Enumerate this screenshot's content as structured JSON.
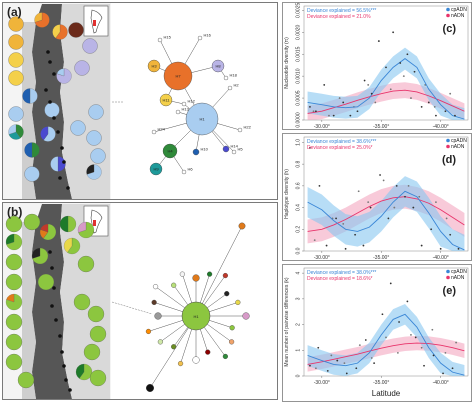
{
  "figure": {
    "panels": {
      "a": "(a)",
      "b": "(b)",
      "c": "(c)",
      "d": "(d)",
      "e": "(e)"
    }
  },
  "colors": {
    "cp": "#3a86d6",
    "n": "#e8346b",
    "cp_band": "#87c6f0",
    "n_band": "#f4a6bf"
  },
  "network_a": {
    "haplotypes": [
      {
        "id": "H7",
        "label": "H7",
        "color": "#e8712a"
      },
      {
        "id": "H1",
        "label": "H1",
        "color": "#a9cdf0"
      },
      {
        "id": "H3",
        "label": "H3",
        "color": "#f0b43a"
      },
      {
        "id": "H8",
        "label": "H8",
        "color": "#b9b4e6"
      },
      {
        "id": "H11",
        "label": "H11",
        "color": "#f4d04a"
      },
      {
        "id": "H4",
        "label": "H4",
        "color": "#2f8a3a"
      },
      {
        "id": "H9",
        "label": "H9",
        "color": "#1e9a9a"
      },
      {
        "id": "H10",
        "label": "H10",
        "color": "#1f5fb0"
      },
      {
        "id": "H14",
        "label": "H14",
        "color": "#4a4ad0"
      },
      {
        "id": "H13",
        "label": "H13",
        "color": "#ffffff"
      },
      {
        "id": "H12",
        "label": "H12",
        "color": "#ffffff"
      },
      {
        "id": "H2",
        "label": "H2",
        "color": "#ffffff"
      },
      {
        "id": "H5",
        "label": "H5",
        "color": "#ffffff"
      },
      {
        "id": "H6",
        "label": "H6",
        "color": "#ffffff"
      },
      {
        "id": "H15",
        "label": "H15",
        "color": "#ffffff"
      },
      {
        "id": "H16",
        "label": "H16",
        "color": "#ffffff"
      },
      {
        "id": "H18",
        "label": "H18",
        "color": "#ffffff"
      },
      {
        "id": "H22",
        "label": "H22",
        "color": "#ffffff"
      },
      {
        "id": "H24",
        "label": "H24",
        "color": "#ffffff"
      }
    ]
  },
  "network_b": {
    "center_label": "H1"
  },
  "chart_data": [
    {
      "panel": "c",
      "type": "scatter",
      "ylabel": "Nucleotide diversity (π)",
      "xlabel": "",
      "x_ticks": [
        "-30.00°",
        "-35.00°",
        "-40.00°"
      ],
      "x_tick_values": [
        -30,
        -35,
        -40
      ],
      "xlim": [
        -28.5,
        -42.3
      ],
      "y_ticks": [
        "0.0000",
        "0.0005",
        "0.0010",
        "0.0015",
        "0.0020",
        "0.0025"
      ],
      "ylim": [
        0,
        0.0026
      ],
      "legend": [
        {
          "name": "cpADN",
          "color": "#3a86d6"
        },
        {
          "name": "nADN",
          "color": "#e8346b"
        }
      ],
      "annotations": [
        {
          "text": "Deviance explained = 56.5%***",
          "color": "#3a86d6"
        },
        {
          "text": "Deviance explained = 21.0%",
          "color": "#e8346b"
        }
      ],
      "series": [
        {
          "name": "cpADN",
          "color": "#3a86d6",
          "curve_x": [
            -28.8,
            -30,
            -31,
            -32,
            -33,
            -34,
            -35,
            -36,
            -37,
            -38,
            -39,
            -40,
            -41,
            -42
          ],
          "curve_y": [
            0.0004,
            0.00035,
            0.0003,
            0.00028,
            0.0003,
            0.0005,
            0.0009,
            0.0012,
            0.0014,
            0.0012,
            0.0007,
            0.00035,
            0.0001,
            2e-05
          ],
          "band": 0.00025,
          "points_x": [
            -29,
            -29.5,
            -30.2,
            -31,
            -31.8,
            -32.4,
            -33,
            -33.6,
            -34.2,
            -34.8,
            -35.4,
            -36,
            -36.6,
            -37.2,
            -37.8,
            -38.4,
            -39,
            -39.6,
            -40.4,
            -41.2
          ],
          "points_y": [
            0.0003,
            0.0002,
            0.0008,
            0.0001,
            0.0004,
            0.0001,
            0.0002,
            0.0009,
            0.0006,
            0.0018,
            0.0012,
            0.002,
            0.0013,
            0.0015,
            0.0011,
            0.0003,
            0.0004,
            0.0001,
            0.0002,
            0.0001
          ]
        },
        {
          "name": "nADN",
          "color": "#e8346b",
          "curve_x": [
            -28.8,
            -30,
            -31,
            -32,
            -33,
            -34,
            -35,
            -36,
            -37,
            -38,
            -39,
            -40,
            -41,
            -42
          ],
          "curve_y": [
            0.00015,
            0.0002,
            0.00028,
            0.00036,
            0.00045,
            0.00053,
            0.0006,
            0.00066,
            0.00068,
            0.00064,
            0.00055,
            0.00044,
            0.00032,
            0.0002
          ],
          "band": 0.00018,
          "points_x": [
            -29.3,
            -30.6,
            -31.5,
            -32.7,
            -33.9,
            -34.5,
            -35.8,
            -36.9,
            -37.5,
            -38.7,
            -39.5,
            -40.8
          ],
          "points_y": [
            0.0002,
            0.0001,
            0.0005,
            0.0003,
            0.0008,
            0.0004,
            0.0007,
            0.001,
            0.0005,
            0.0008,
            0.0003,
            0.0006
          ]
        }
      ]
    },
    {
      "panel": "d",
      "type": "scatter",
      "ylabel": "Haplotype diversity (h)",
      "xlabel": "",
      "x_ticks": [
        "-30.00°",
        "-35.00°",
        "-40.00°"
      ],
      "x_tick_values": [
        -30,
        -35,
        -40
      ],
      "xlim": [
        -28.5,
        -42.3
      ],
      "y_ticks": [
        "0.0",
        "0.2",
        "0.4",
        "0.6",
        "0.8",
        "1.0"
      ],
      "ylim": [
        0,
        1.05
      ],
      "legend": [
        {
          "name": "cpADN",
          "color": "#3a86d6"
        },
        {
          "name": "nADN",
          "color": "#e8346b"
        }
      ],
      "annotations": [
        {
          "text": "Deviance explained = 38.6%***",
          "color": "#3a86d6"
        },
        {
          "text": "Deviance explained = 25.0%*",
          "color": "#e8346b"
        }
      ],
      "series": [
        {
          "name": "cpADN",
          "color": "#3a86d6",
          "curve_x": [
            -28.8,
            -30,
            -31,
            -32,
            -33,
            -34,
            -35,
            -36,
            -37,
            -38,
            -39,
            -40,
            -41,
            -42
          ],
          "curve_y": [
            0.45,
            0.38,
            0.28,
            0.2,
            0.18,
            0.22,
            0.32,
            0.45,
            0.55,
            0.5,
            0.35,
            0.18,
            0.06,
            0.01
          ],
          "band": 0.14,
          "points_x": [
            -29,
            -29.8,
            -30.4,
            -31.2,
            -32,
            -32.8,
            -33.5,
            -34.1,
            -34.9,
            -35.6,
            -36.3,
            -37,
            -37.7,
            -38.4,
            -39.2,
            -40,
            -40.8,
            -41.5
          ],
          "points_y": [
            0.95,
            0.6,
            0.05,
            0.3,
            0.02,
            0.15,
            0.05,
            0.4,
            0.7,
            0.3,
            0.6,
            0.5,
            0.4,
            0.05,
            0.2,
            0.02,
            0.15,
            0.02
          ]
        },
        {
          "name": "nADN",
          "color": "#e8346b",
          "curve_x": [
            -28.8,
            -30,
            -31,
            -32,
            -33,
            -34,
            -35,
            -36,
            -37,
            -38,
            -39,
            -40,
            -41,
            -42
          ],
          "curve_y": [
            0.18,
            0.2,
            0.24,
            0.29,
            0.35,
            0.41,
            0.46,
            0.49,
            0.5,
            0.48,
            0.44,
            0.38,
            0.31,
            0.24
          ],
          "band": 0.11,
          "points_x": [
            -29.4,
            -30.9,
            -31.8,
            -33.1,
            -33.9,
            -35.2,
            -36.1,
            -37.3,
            -38.2,
            -39.6,
            -40.5
          ],
          "points_y": [
            0.1,
            0.3,
            0.25,
            0.55,
            0.45,
            0.65,
            0.4,
            0.6,
            0.5,
            0.45,
            0.3
          ]
        }
      ]
    },
    {
      "panel": "e",
      "type": "scatter",
      "ylabel": "Mean number of pairwise differences (k)",
      "xlabel": "Latitude",
      "x_ticks": [
        "-30.00°",
        "-35.00°",
        "-40.00°"
      ],
      "x_tick_values": [
        -30,
        -35,
        -40
      ],
      "xlim": [
        -28.5,
        -42.3
      ],
      "y_ticks": [
        "0",
        "1",
        "2",
        "3",
        "4"
      ],
      "ylim": [
        0,
        4.2
      ],
      "legend": [
        {
          "name": "cpADN",
          "color": "#3a86d6"
        },
        {
          "name": "nADN",
          "color": "#e8346b"
        }
      ],
      "annotations": [
        {
          "text": "Deviance explained = 38.0%***",
          "color": "#3a86d6"
        },
        {
          "text": "Deviance explained = 18.6%*",
          "color": "#e8346b"
        }
      ],
      "series": [
        {
          "name": "cpADN",
          "color": "#3a86d6",
          "curve_x": [
            -28.8,
            -30,
            -31,
            -32,
            -33,
            -34,
            -35,
            -36,
            -37,
            -38,
            -39,
            -40,
            -41,
            -42
          ],
          "curve_y": [
            0.8,
            0.6,
            0.45,
            0.4,
            0.5,
            0.9,
            1.6,
            2.2,
            2.4,
            1.9,
            1.1,
            0.5,
            0.15,
            0.03
          ],
          "band": 0.4,
          "points_x": [
            -29,
            -29.7,
            -30.5,
            -31.3,
            -32.1,
            -32.9,
            -33.7,
            -34.4,
            -35.1,
            -35.8,
            -36.5,
            -37.2,
            -37.9,
            -38.6,
            -39.4,
            -40.2,
            -41
          ],
          "points_y": [
            0.4,
            1.1,
            0.2,
            0.6,
            0.1,
            0.3,
            1.4,
            0.5,
            2.4,
            3.6,
            2.1,
            2.9,
            1.5,
            0.4,
            0.8,
            0.1,
            0.3
          ]
        },
        {
          "name": "nADN",
          "color": "#e8346b",
          "curve_x": [
            -28.8,
            -30,
            -31,
            -32,
            -33,
            -34,
            -35,
            -36,
            -37,
            -38,
            -39,
            -40,
            -41,
            -42
          ],
          "curve_y": [
            0.45,
            0.55,
            0.65,
            0.75,
            0.85,
            0.97,
            1.08,
            1.18,
            1.25,
            1.28,
            1.26,
            1.2,
            1.1,
            0.98
          ],
          "band": 0.28,
          "points_x": [
            -29.5,
            -30.8,
            -31.9,
            -33.2,
            -34.2,
            -35.4,
            -36.4,
            -37.5,
            -38.4,
            -39.3,
            -40.4,
            -41.3
          ],
          "points_y": [
            0.3,
            0.8,
            0.5,
            1.2,
            0.7,
            1.5,
            0.9,
            1.6,
            1.1,
            1.8,
            0.9,
            1.3
          ]
        }
      ]
    }
  ]
}
